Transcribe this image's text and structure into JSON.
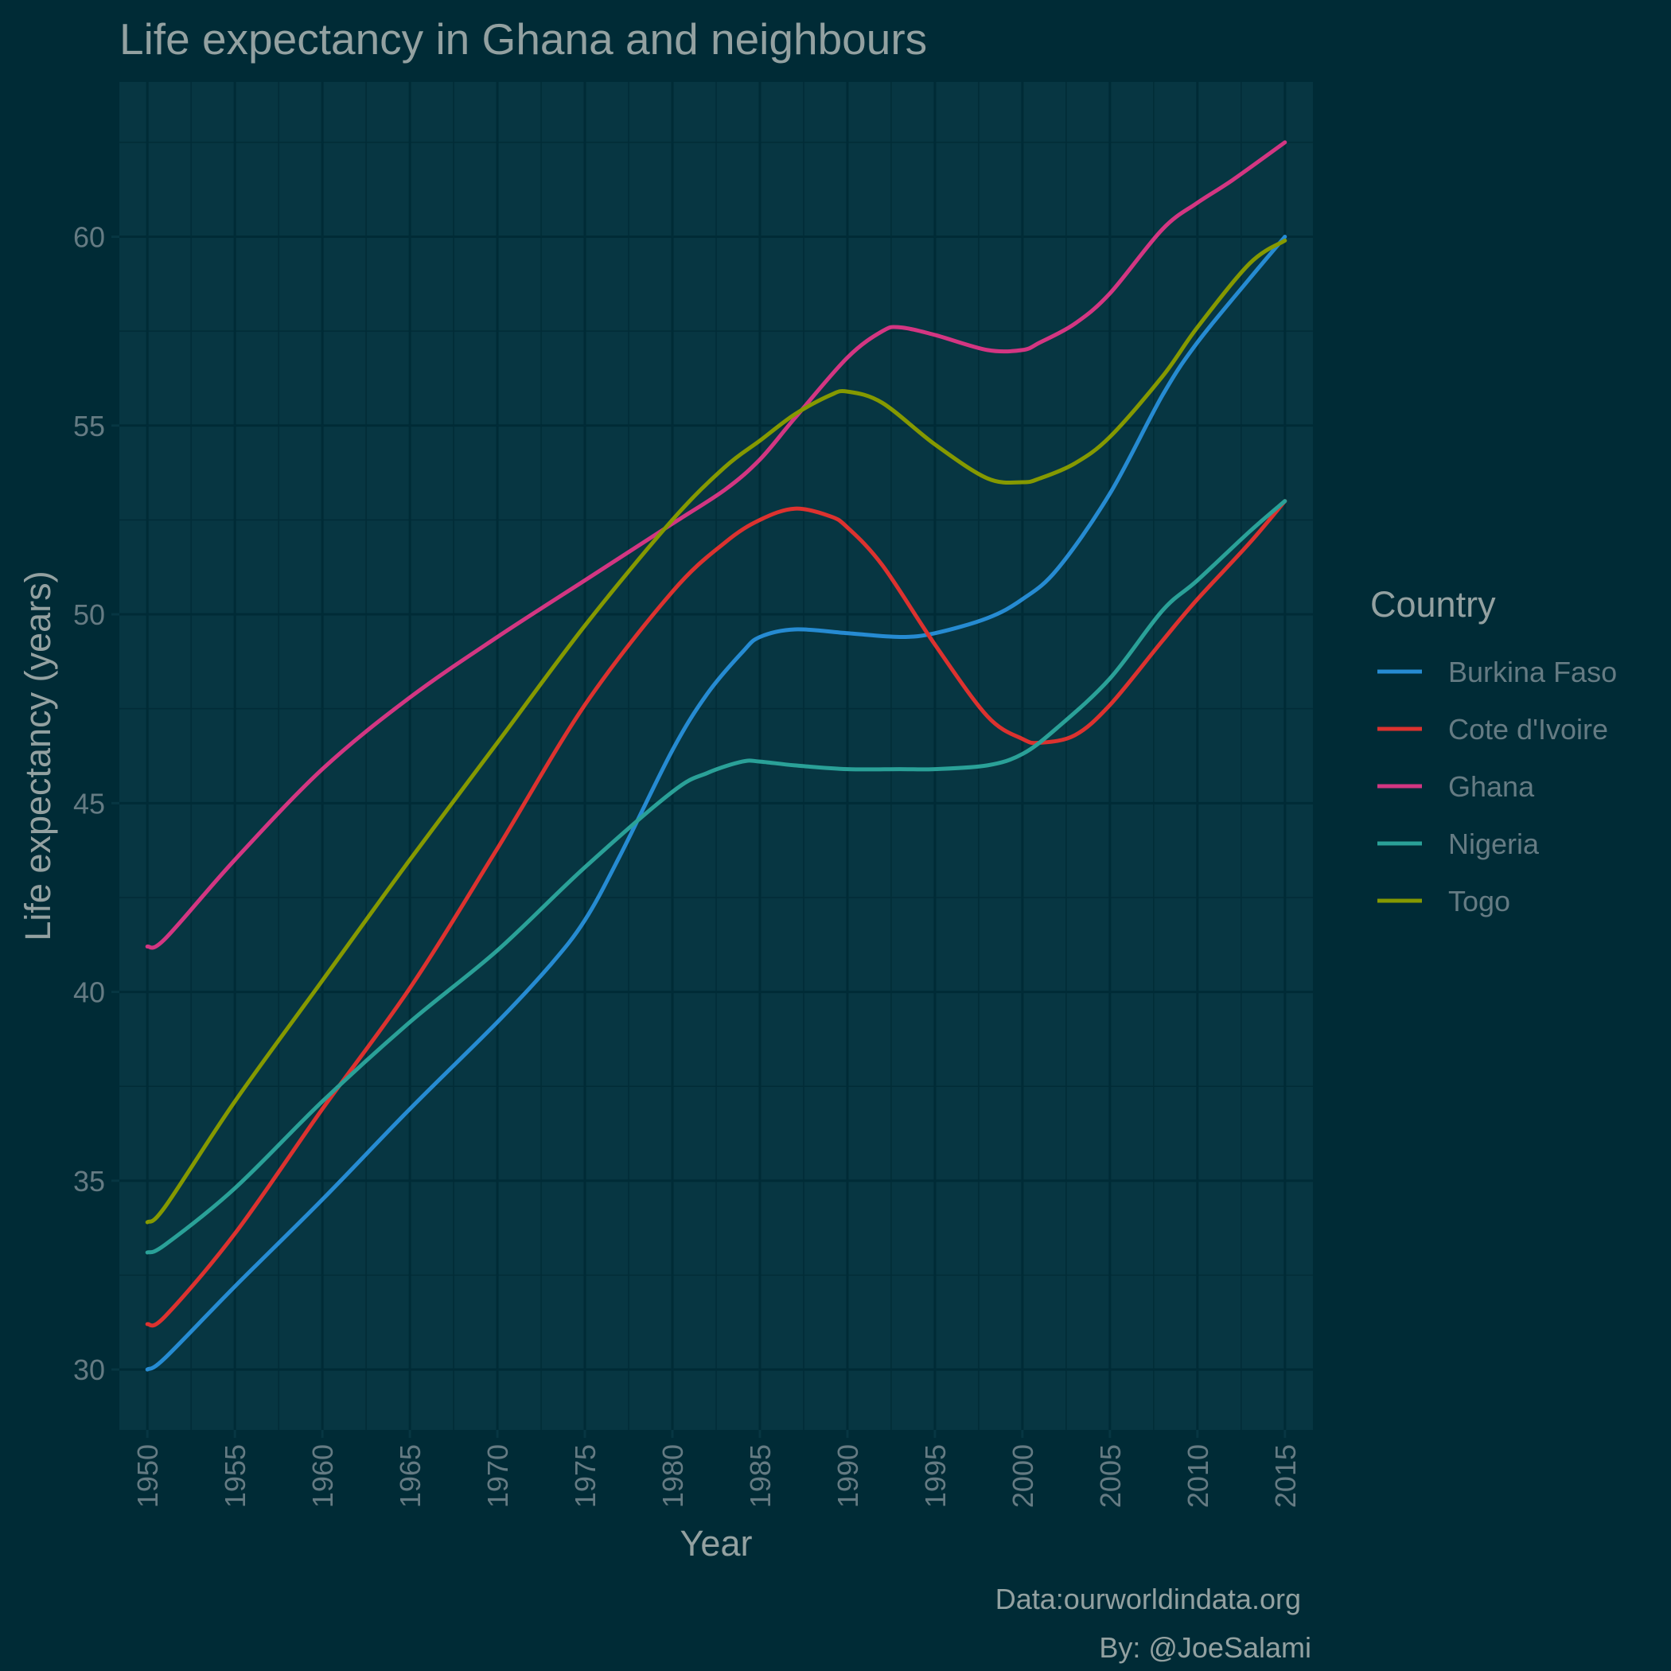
{
  "chart_data": {
    "type": "line",
    "title": "Life expectancy in Ghana and neighbours",
    "xlabel": "Year",
    "ylabel": "Life expectancy (years)",
    "xlim": [
      1948.4,
      2016.6
    ],
    "ylim": [
      28.4,
      64.1
    ],
    "xticks": [
      1950,
      1955,
      1960,
      1965,
      1970,
      1975,
      1980,
      1985,
      1990,
      1995,
      2000,
      2005,
      2010,
      2015
    ],
    "yticks": [
      30,
      35,
      40,
      45,
      50,
      55,
      60
    ],
    "grid": true,
    "legend_position": "right",
    "legend_title": "Country",
    "caption": [
      "Data:ourworldindata.org",
      "By: @JoeSalami"
    ],
    "series": [
      {
        "name": "Burkina Faso",
        "color": "#268bd2",
        "x": [
          1950,
          1951,
          1955,
          1960,
          1965,
          1970,
          1973,
          1975,
          1977,
          1980,
          1982,
          1984,
          1985,
          1987,
          1990,
          1993,
          1995,
          1998,
          2000,
          2002,
          2005,
          2008,
          2010,
          2013,
          2015
        ],
        "y": [
          30.0,
          30.3,
          32.2,
          34.5,
          36.9,
          39.2,
          40.7,
          41.9,
          43.6,
          46.4,
          47.9,
          49.0,
          49.4,
          49.6,
          49.5,
          49.4,
          49.5,
          49.9,
          50.4,
          51.2,
          53.2,
          55.8,
          57.2,
          58.9,
          60.0
        ]
      },
      {
        "name": "Cote d'Ivoire",
        "color": "#dc322f",
        "x": [
          1950,
          1951,
          1955,
          1960,
          1965,
          1970,
          1975,
          1980,
          1983,
          1985,
          1987,
          1989,
          1990,
          1992,
          1995,
          1998,
          2000,
          2001,
          2003,
          2005,
          2008,
          2010,
          2013,
          2015
        ],
        "y": [
          31.2,
          31.4,
          33.6,
          36.9,
          40.1,
          43.8,
          47.6,
          50.6,
          51.9,
          52.5,
          52.8,
          52.6,
          52.3,
          51.3,
          49.2,
          47.3,
          46.7,
          46.6,
          46.8,
          47.6,
          49.3,
          50.4,
          51.9,
          53.0
        ]
      },
      {
        "name": "Ghana",
        "color": "#d33682",
        "x": [
          1950,
          1951,
          1955,
          1960,
          1965,
          1970,
          1975,
          1980,
          1983,
          1985,
          1987,
          1990,
          1992,
          1993,
          1995,
          1998,
          2000,
          2001,
          2003,
          2005,
          2008,
          2010,
          2012,
          2015
        ],
        "y": [
          41.2,
          41.4,
          43.5,
          45.9,
          47.8,
          49.4,
          50.9,
          52.4,
          53.3,
          54.1,
          55.2,
          56.8,
          57.5,
          57.6,
          57.4,
          57.0,
          57.0,
          57.2,
          57.7,
          58.5,
          60.2,
          60.9,
          61.5,
          62.5
        ]
      },
      {
        "name": "Nigeria",
        "color": "#2aa198",
        "x": [
          1950,
          1951,
          1955,
          1960,
          1965,
          1970,
          1975,
          1980,
          1982,
          1984,
          1985,
          1987,
          1990,
          1993,
          1995,
          1998,
          2000,
          2002,
          2005,
          2008,
          2010,
          2013,
          2015
        ],
        "y": [
          33.1,
          33.3,
          34.8,
          37.1,
          39.2,
          41.1,
          43.3,
          45.3,
          45.8,
          46.1,
          46.1,
          46.0,
          45.9,
          45.9,
          45.9,
          46.0,
          46.3,
          47.0,
          48.3,
          50.1,
          50.9,
          52.2,
          53.0
        ]
      },
      {
        "name": "Togo",
        "color": "#859900",
        "x": [
          1950,
          1951,
          1955,
          1960,
          1965,
          1970,
          1975,
          1980,
          1983,
          1985,
          1987,
          1989,
          1990,
          1992,
          1995,
          1998,
          2000,
          2001,
          2003,
          2005,
          2008,
          2010,
          2013,
          2015
        ],
        "y": [
          33.9,
          34.3,
          37.1,
          40.3,
          43.5,
          46.6,
          49.7,
          52.5,
          53.9,
          54.6,
          55.3,
          55.8,
          55.9,
          55.6,
          54.5,
          53.6,
          53.5,
          53.6,
          54.0,
          54.7,
          56.3,
          57.6,
          59.3,
          59.9
        ]
      }
    ]
  }
}
